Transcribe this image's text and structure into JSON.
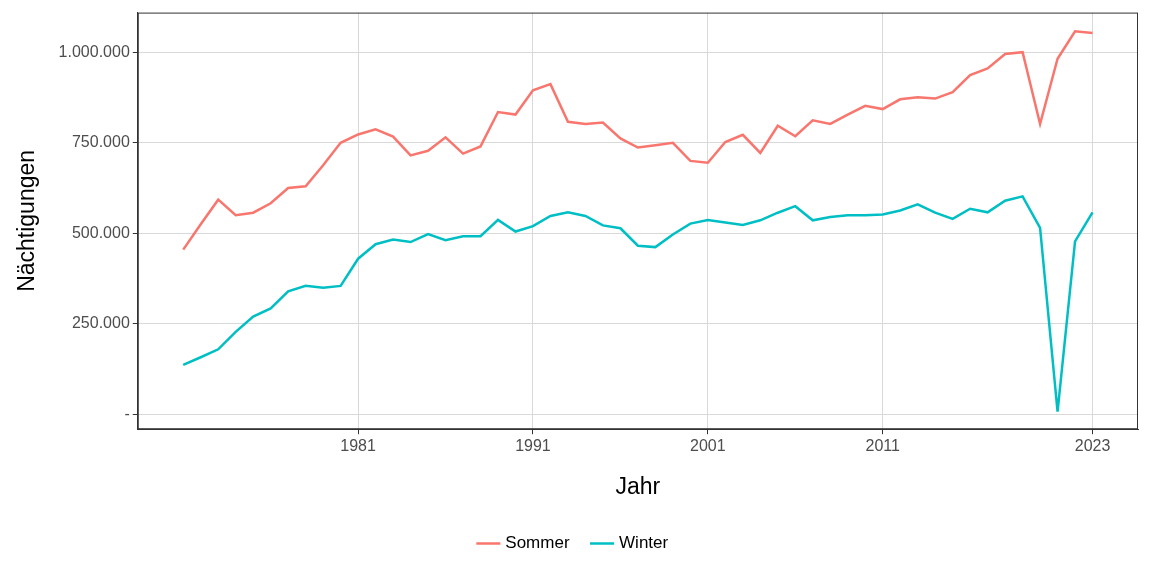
{
  "chart_data": {
    "type": "line",
    "x_label": "Jahr",
    "y_label": "Nächtigungen",
    "x": [
      1971,
      1972,
      1973,
      1974,
      1975,
      1976,
      1977,
      1978,
      1979,
      1980,
      1981,
      1982,
      1983,
      1984,
      1985,
      1986,
      1987,
      1988,
      1989,
      1990,
      1991,
      1992,
      1993,
      1994,
      1995,
      1996,
      1997,
      1998,
      1999,
      2000,
      2001,
      2002,
      2003,
      2004,
      2005,
      2006,
      2007,
      2008,
      2009,
      2010,
      2011,
      2012,
      2013,
      2014,
      2015,
      2016,
      2017,
      2018,
      2019,
      2020,
      2021,
      2022,
      2023
    ],
    "series": [
      {
        "name": "Sommer",
        "color": "#F8766D",
        "values": [
          455000,
          525000,
          593000,
          550000,
          557000,
          583000,
          625000,
          630000,
          688000,
          750000,
          773000,
          787000,
          767000,
          715000,
          728000,
          765000,
          720000,
          740000,
          835000,
          828000,
          895000,
          912000,
          808000,
          802000,
          806000,
          762000,
          737000,
          743000,
          750000,
          700000,
          695000,
          752000,
          772000,
          722000,
          797000,
          768000,
          812000,
          802000,
          828000,
          852000,
          843000,
          870000,
          876000,
          872000,
          890000,
          937000,
          955000,
          995000,
          1000000,
          802000,
          982000,
          1058000,
          1053000
        ]
      },
      {
        "name": "Winter",
        "color": "#00BFC4",
        "values": [
          137000,
          158000,
          180000,
          228000,
          270000,
          293000,
          340000,
          355000,
          350000,
          355000,
          430000,
          470000,
          483000,
          476000,
          498000,
          481000,
          492000,
          492000,
          537000,
          505000,
          520000,
          548000,
          558000,
          548000,
          522000,
          514000,
          466000,
          462000,
          497000,
          527000,
          537000,
          530000,
          523000,
          536000,
          557000,
          575000,
          536000,
          545000,
          550000,
          550000,
          552000,
          563000,
          580000,
          557000,
          540000,
          568000,
          558000,
          590000,
          602000,
          515000,
          8000,
          478000,
          558000
        ]
      }
    ],
    "xlim": [
      1968.4,
      2025.6
    ],
    "xticks": [
      1981,
      1991,
      2001,
      2011,
      2023
    ],
    "ylim": [
      -40625,
      1109375
    ],
    "yticks": [
      {
        "value": 0,
        "label": "-"
      },
      {
        "value": 250000,
        "label": "250.000"
      },
      {
        "value": 500000,
        "label": "500.000"
      },
      {
        "value": 750000,
        "label": "750.000"
      },
      {
        "value": 1000000,
        "label": "1.000.000"
      }
    ],
    "grid": true,
    "legend": "bottom"
  }
}
